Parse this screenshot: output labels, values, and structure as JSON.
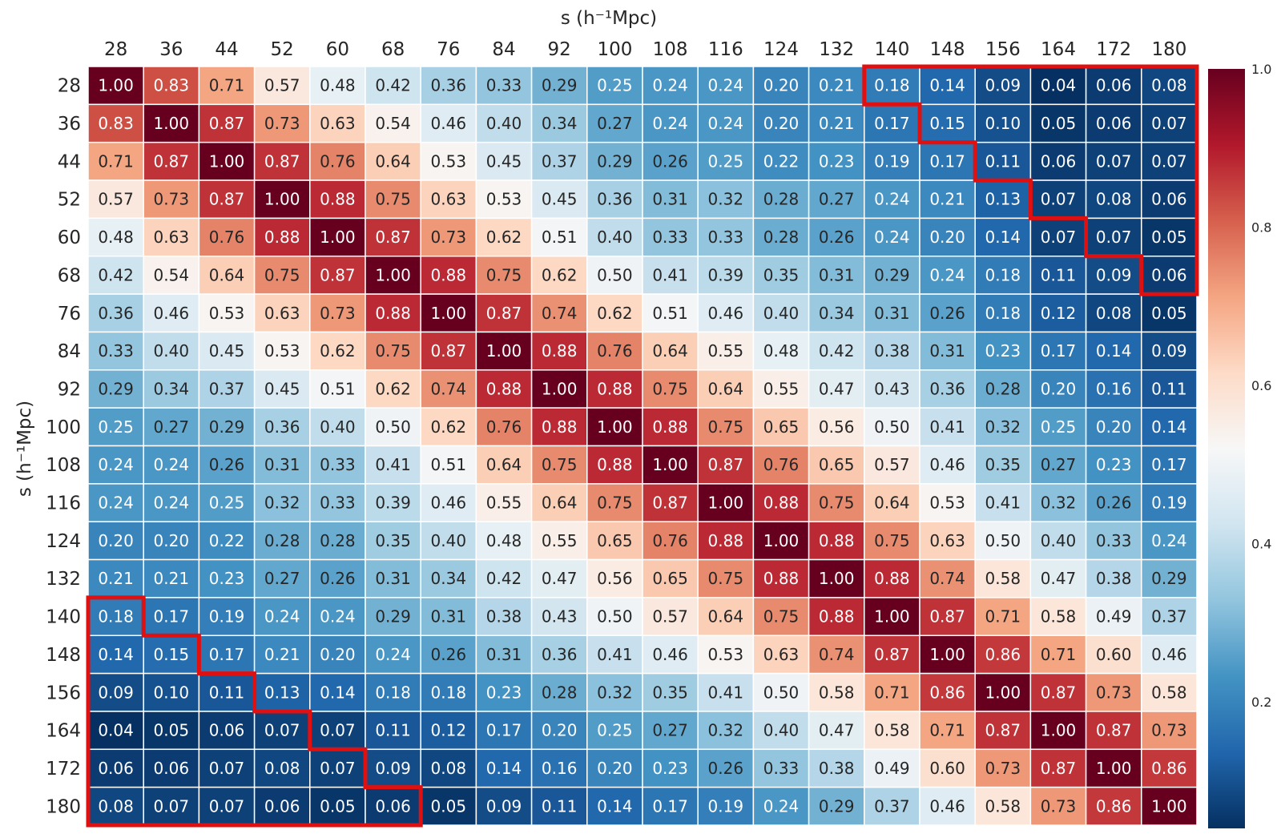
{
  "chart_data": {
    "type": "heatmap",
    "xlabel": "s (h⁻¹Mpc)",
    "ylabel": "s (h⁻¹Mpc)",
    "x_ticks": [
      "28",
      "36",
      "44",
      "52",
      "60",
      "68",
      "76",
      "84",
      "92",
      "100",
      "108",
      "116",
      "124",
      "132",
      "140",
      "148",
      "156",
      "164",
      "172",
      "180"
    ],
    "y_ticks": [
      "28",
      "36",
      "44",
      "52",
      "60",
      "68",
      "76",
      "84",
      "92",
      "100",
      "108",
      "116",
      "124",
      "132",
      "140",
      "148",
      "156",
      "164",
      "172",
      "180"
    ],
    "values": [
      [
        1.0,
        0.83,
        0.71,
        0.57,
        0.48,
        0.42,
        0.36,
        0.33,
        0.29,
        0.25,
        0.24,
        0.24,
        0.2,
        0.21,
        0.18,
        0.14,
        0.09,
        0.04,
        0.06,
        0.08
      ],
      [
        0.83,
        1.0,
        0.87,
        0.73,
        0.63,
        0.54,
        0.46,
        0.4,
        0.34,
        0.27,
        0.24,
        0.24,
        0.2,
        0.21,
        0.17,
        0.15,
        0.1,
        0.05,
        0.06,
        0.07
      ],
      [
        0.71,
        0.87,
        1.0,
        0.87,
        0.76,
        0.64,
        0.53,
        0.45,
        0.37,
        0.29,
        0.26,
        0.25,
        0.22,
        0.23,
        0.19,
        0.17,
        0.11,
        0.06,
        0.07,
        0.07
      ],
      [
        0.57,
        0.73,
        0.87,
        1.0,
        0.88,
        0.75,
        0.63,
        0.53,
        0.45,
        0.36,
        0.31,
        0.32,
        0.28,
        0.27,
        0.24,
        0.21,
        0.13,
        0.07,
        0.08,
        0.06
      ],
      [
        0.48,
        0.63,
        0.76,
        0.88,
        1.0,
        0.87,
        0.73,
        0.62,
        0.51,
        0.4,
        0.33,
        0.33,
        0.28,
        0.26,
        0.24,
        0.2,
        0.14,
        0.07,
        0.07,
        0.05
      ],
      [
        0.42,
        0.54,
        0.64,
        0.75,
        0.87,
        1.0,
        0.88,
        0.75,
        0.62,
        0.5,
        0.41,
        0.39,
        0.35,
        0.31,
        0.29,
        0.24,
        0.18,
        0.11,
        0.09,
        0.06
      ],
      [
        0.36,
        0.46,
        0.53,
        0.63,
        0.73,
        0.88,
        1.0,
        0.87,
        0.74,
        0.62,
        0.51,
        0.46,
        0.4,
        0.34,
        0.31,
        0.26,
        0.18,
        0.12,
        0.08,
        0.05
      ],
      [
        0.33,
        0.4,
        0.45,
        0.53,
        0.62,
        0.75,
        0.87,
        1.0,
        0.88,
        0.76,
        0.64,
        0.55,
        0.48,
        0.42,
        0.38,
        0.31,
        0.23,
        0.17,
        0.14,
        0.09
      ],
      [
        0.29,
        0.34,
        0.37,
        0.45,
        0.51,
        0.62,
        0.74,
        0.88,
        1.0,
        0.88,
        0.75,
        0.64,
        0.55,
        0.47,
        0.43,
        0.36,
        0.28,
        0.2,
        0.16,
        0.11
      ],
      [
        0.25,
        0.27,
        0.29,
        0.36,
        0.4,
        0.5,
        0.62,
        0.76,
        0.88,
        1.0,
        0.88,
        0.75,
        0.65,
        0.56,
        0.5,
        0.41,
        0.32,
        0.25,
        0.2,
        0.14
      ],
      [
        0.24,
        0.24,
        0.26,
        0.31,
        0.33,
        0.41,
        0.51,
        0.64,
        0.75,
        0.88,
        1.0,
        0.87,
        0.76,
        0.65,
        0.57,
        0.46,
        0.35,
        0.27,
        0.23,
        0.17
      ],
      [
        0.24,
        0.24,
        0.25,
        0.32,
        0.33,
        0.39,
        0.46,
        0.55,
        0.64,
        0.75,
        0.87,
        1.0,
        0.88,
        0.75,
        0.64,
        0.53,
        0.41,
        0.32,
        0.26,
        0.19
      ],
      [
        0.2,
        0.2,
        0.22,
        0.28,
        0.28,
        0.35,
        0.4,
        0.48,
        0.55,
        0.65,
        0.76,
        0.88,
        1.0,
        0.88,
        0.75,
        0.63,
        0.5,
        0.4,
        0.33,
        0.24
      ],
      [
        0.21,
        0.21,
        0.23,
        0.27,
        0.26,
        0.31,
        0.34,
        0.42,
        0.47,
        0.56,
        0.65,
        0.75,
        0.88,
        1.0,
        0.88,
        0.74,
        0.58,
        0.47,
        0.38,
        0.29
      ],
      [
        0.18,
        0.17,
        0.19,
        0.24,
        0.24,
        0.29,
        0.31,
        0.38,
        0.43,
        0.5,
        0.57,
        0.64,
        0.75,
        0.88,
        1.0,
        0.87,
        0.71,
        0.58,
        0.49,
        0.37
      ],
      [
        0.14,
        0.15,
        0.17,
        0.21,
        0.2,
        0.24,
        0.26,
        0.31,
        0.36,
        0.41,
        0.46,
        0.53,
        0.63,
        0.74,
        0.87,
        1.0,
        0.86,
        0.71,
        0.6,
        0.46
      ],
      [
        0.09,
        0.1,
        0.11,
        0.13,
        0.14,
        0.18,
        0.18,
        0.23,
        0.28,
        0.32,
        0.35,
        0.41,
        0.5,
        0.58,
        0.71,
        0.86,
        1.0,
        0.87,
        0.73,
        0.58
      ],
      [
        0.04,
        0.05,
        0.06,
        0.07,
        0.07,
        0.11,
        0.12,
        0.17,
        0.2,
        0.25,
        0.27,
        0.32,
        0.4,
        0.47,
        0.58,
        0.71,
        0.87,
        1.0,
        0.87,
        0.73
      ],
      [
        0.06,
        0.06,
        0.07,
        0.08,
        0.07,
        0.09,
        0.08,
        0.14,
        0.16,
        0.2,
        0.23,
        0.26,
        0.33,
        0.38,
        0.49,
        0.6,
        0.73,
        0.87,
        1.0,
        0.86
      ],
      [
        0.08,
        0.07,
        0.07,
        0.06,
        0.05,
        0.06,
        0.05,
        0.09,
        0.11,
        0.14,
        0.17,
        0.19,
        0.24,
        0.29,
        0.37,
        0.46,
        0.58,
        0.73,
        0.86,
        1.0
      ]
    ],
    "vmin": 0.04,
    "vmax": 1.0,
    "colormap": "RdBu_r",
    "colorbar_ticks": [
      "0.2",
      "0.4",
      "0.6",
      "0.8",
      "1.0"
    ],
    "colorbar_tick_values": [
      0.2,
      0.4,
      0.6,
      0.8,
      1.0
    ],
    "annotations": "cell values shown with two decimals",
    "highlight_color": "#e01010",
    "highlight_regions": [
      {
        "corner": "top-right",
        "row_start": [
          14,
          15,
          16,
          17,
          18,
          19
        ],
        "rows": [
          0,
          1,
          2,
          3,
          4,
          5
        ]
      },
      {
        "corner": "bottom-left",
        "rows": [
          14,
          15,
          16,
          17,
          18,
          19
        ],
        "col_end": [
          0,
          1,
          2,
          3,
          4,
          5
        ]
      }
    ]
  }
}
